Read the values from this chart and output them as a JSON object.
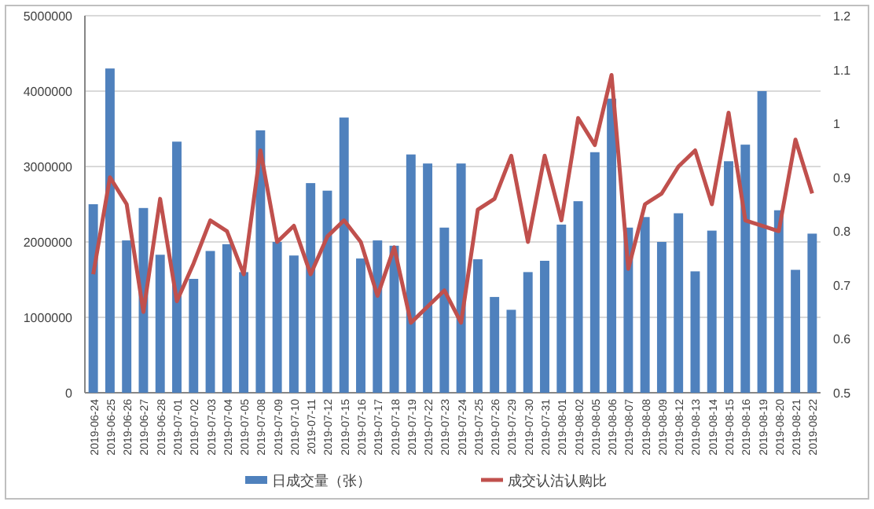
{
  "chart_data": {
    "type": "bar",
    "categories": [
      "2019-06-24",
      "2019-06-25",
      "2019-06-26",
      "2019-06-27",
      "2019-06-28",
      "2019-07-01",
      "2019-07-02",
      "2019-07-03",
      "2019-07-04",
      "2019-07-05",
      "2019-07-08",
      "2019-07-09",
      "2019-07-10",
      "2019-07-11",
      "2019-07-12",
      "2019-07-15",
      "2019-07-16",
      "2019-07-17",
      "2019-07-18",
      "2019-07-19",
      "2019-07-22",
      "2019-07-23",
      "2019-07-24",
      "2019-07-25",
      "2019-07-26",
      "2019-07-29",
      "2019-07-30",
      "2019-07-31",
      "2019-08-01",
      "2019-08-02",
      "2019-08-05",
      "2019-08-06",
      "2019-08-07",
      "2019-08-08",
      "2019-08-09",
      "2019-08-12",
      "2019-08-13",
      "2019-08-14",
      "2019-08-15",
      "2019-08-16",
      "2019-08-19",
      "2019-08-20",
      "2019-08-21",
      "2019-08-22"
    ],
    "series": [
      {
        "name": "日成交量（张）",
        "color": "#4f81bd",
        "values": [
          2500000,
          4300000,
          2020000,
          2450000,
          1830000,
          3330000,
          1510000,
          1880000,
          1970000,
          1600000,
          3480000,
          2000000,
          1820000,
          2780000,
          2680000,
          3650000,
          1780000,
          2020000,
          1950000,
          3160000,
          3040000,
          2190000,
          3040000,
          1770000,
          1270000,
          1100000,
          1600000,
          1750000,
          2230000,
          2540000,
          3190000,
          3900000,
          2190000,
          2330000,
          2000000,
          2380000,
          1610000,
          2150000,
          3070000,
          3290000,
          4000000,
          2420000,
          1630000,
          2110000
        ]
      },
      {
        "name": "成交认沽认购比",
        "color": "#c0504d",
        "type": "line",
        "axis": "y2",
        "values": [
          0.72,
          0.9,
          0.85,
          0.65,
          0.86,
          0.67,
          0.74,
          0.82,
          0.8,
          0.72,
          0.95,
          0.78,
          0.81,
          0.72,
          0.79,
          0.82,
          0.78,
          0.68,
          0.77,
          0.63,
          0.66,
          0.69,
          0.63,
          0.84,
          0.86,
          0.94,
          0.78,
          0.94,
          0.82,
          1.01,
          0.96,
          1.09,
          0.73,
          0.85,
          0.87,
          0.92,
          0.95,
          0.85,
          1.02,
          0.82,
          0.81,
          0.8,
          0.97,
          0.87
        ]
      }
    ],
    "ylim": [
      0,
      5000000
    ],
    "yticks": [
      0,
      1000000,
      2000000,
      3000000,
      4000000,
      5000000
    ],
    "y2lim": [
      0.5,
      1.2
    ],
    "y2ticks": [
      0.5,
      0.6,
      0.7,
      0.8,
      0.9,
      1,
      1.1,
      1.2
    ],
    "grid": "y",
    "legend": "bottom"
  }
}
